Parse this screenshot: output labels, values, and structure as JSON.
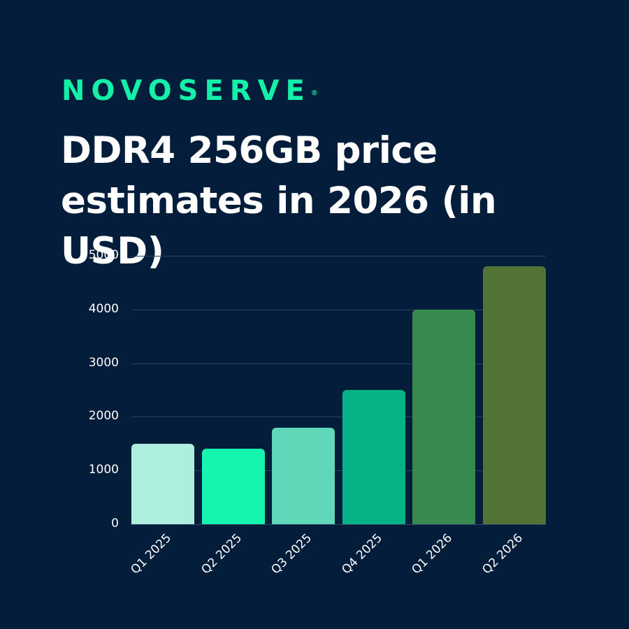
{
  "brand": {
    "logo_text": "NOVOSERVE",
    "registered_mark": "®",
    "logo_color": "#14f0a8"
  },
  "header": {
    "title_line1": "DDR4 256GB price",
    "title_line2": "estimates in 2026 (in USD)"
  },
  "colors": {
    "background": "#031d3a",
    "gridline": "#2a4563"
  },
  "chart_data": {
    "type": "bar",
    "title": "DDR4 256GB price estimates in 2026 (in USD)",
    "xlabel": "",
    "ylabel": "",
    "categories": [
      "Q1 2025",
      "Q2 2025",
      "Q3 2025",
      "Q4 2025",
      "Q1 2026",
      "Q2 2026"
    ],
    "values": [
      1500,
      1400,
      1800,
      2500,
      4000,
      4800
    ],
    "bar_colors": [
      "#aeeedd",
      "#14f5ad",
      "#60d7b8",
      "#05b387",
      "#368a4f",
      "#537336"
    ],
    "ylim": [
      0,
      5000
    ],
    "yticks": [
      "0",
      "1000",
      "2000",
      "3000",
      "4000",
      "5000"
    ],
    "grid": true,
    "legend": "none"
  }
}
